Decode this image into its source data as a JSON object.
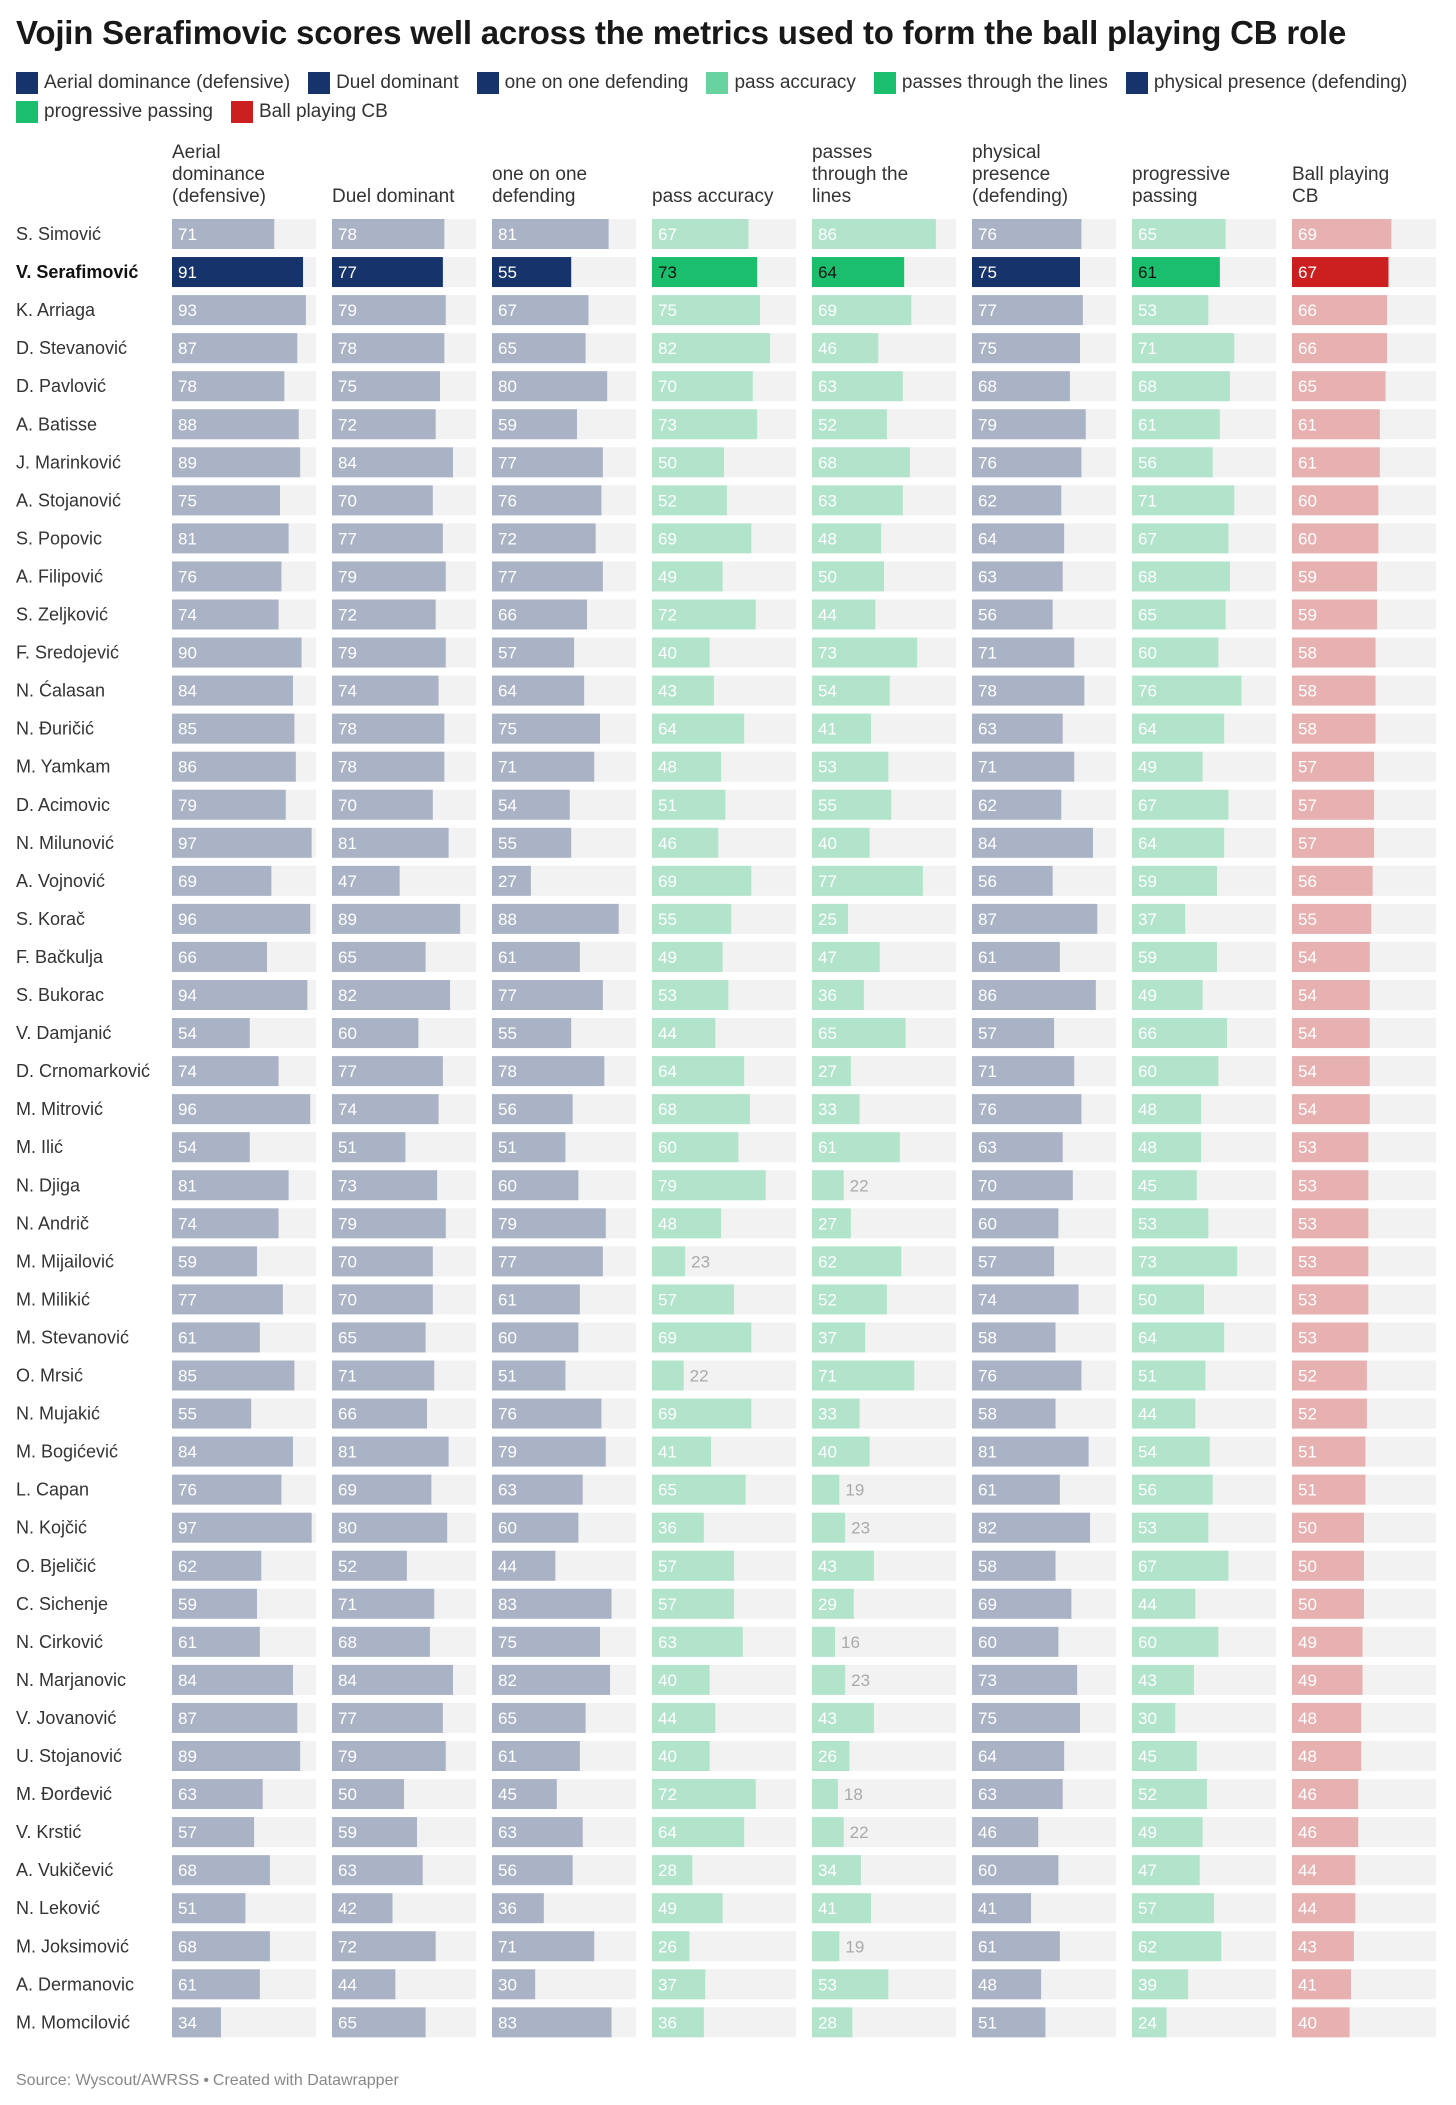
{
  "title": "Vojin Serafimovic scores well across the metrics used to form the ball playing CB role",
  "legend": [
    {
      "label": "Aerial dominance (defensive)",
      "color": "#17336b"
    },
    {
      "label": "Duel dominant",
      "color": "#17336b"
    },
    {
      "label": "one on one defending",
      "color": "#17336b"
    },
    {
      "label": "pass accuracy",
      "color": "#69d3a0"
    },
    {
      "label": "passes through the lines",
      "color": "#1bbe6c"
    },
    {
      "label": "physical presence (defending)",
      "color": "#17336b"
    },
    {
      "label": "progressive passing",
      "color": "#1bbe6c"
    },
    {
      "label": "Ball playing CB",
      "color": "#cc2020"
    }
  ],
  "footer": {
    "source": "Source: Wyscout/AWRSS",
    "separator": "•",
    "credit": "Created with Datawrapper"
  },
  "colors": {
    "defensive_highlight": "#17336b",
    "defensive_muted": "#aab3c6",
    "passing_highlight": "#1bbe6c",
    "passing_muted": "#b2e4cc",
    "cb_highlight": "#cc2020",
    "cb_muted": "#e8b1b1",
    "bar_background": "#f2f2f2"
  },
  "chart_data": {
    "type": "table",
    "scale_max": 100,
    "highlight_player": "V. Serafimović",
    "columns": [
      {
        "label": "Aerial dominance (defensive)",
        "group": "defensive"
      },
      {
        "label": "Duel dominant",
        "group": "defensive"
      },
      {
        "label": "one on one defending",
        "group": "defensive"
      },
      {
        "label": "pass accuracy",
        "group": "passing"
      },
      {
        "label": "passes through the lines",
        "group": "passing"
      },
      {
        "label": "physical presence (defending)",
        "group": "defensive"
      },
      {
        "label": "progressive passing",
        "group": "passing"
      },
      {
        "label": "Ball playing CB",
        "group": "cb"
      }
    ],
    "rows": [
      {
        "name": "S. Simović",
        "values": [
          71,
          78,
          81,
          67,
          86,
          76,
          65,
          69
        ]
      },
      {
        "name": "V. Serafimović",
        "values": [
          91,
          77,
          55,
          73,
          64,
          75,
          61,
          67
        ]
      },
      {
        "name": "K. Arriaga",
        "values": [
          93,
          79,
          67,
          75,
          69,
          77,
          53,
          66
        ]
      },
      {
        "name": "D. Stevanović",
        "values": [
          87,
          78,
          65,
          82,
          46,
          75,
          71,
          66
        ]
      },
      {
        "name": "D. Pavlović",
        "values": [
          78,
          75,
          80,
          70,
          63,
          68,
          68,
          65
        ]
      },
      {
        "name": "A. Batisse",
        "values": [
          88,
          72,
          59,
          73,
          52,
          79,
          61,
          61
        ]
      },
      {
        "name": "J. Marinković",
        "values": [
          89,
          84,
          77,
          50,
          68,
          76,
          56,
          61
        ]
      },
      {
        "name": "A. Stojanović",
        "values": [
          75,
          70,
          76,
          52,
          63,
          62,
          71,
          60
        ]
      },
      {
        "name": "S. Popovic",
        "values": [
          81,
          77,
          72,
          69,
          48,
          64,
          67,
          60
        ]
      },
      {
        "name": "A. Filipović",
        "values": [
          76,
          79,
          77,
          49,
          50,
          63,
          68,
          59
        ]
      },
      {
        "name": "S. Zeljković",
        "values": [
          74,
          72,
          66,
          72,
          44,
          56,
          65,
          59
        ]
      },
      {
        "name": "F. Sredojević",
        "values": [
          90,
          79,
          57,
          40,
          73,
          71,
          60,
          58
        ]
      },
      {
        "name": "N. Ćalasan",
        "values": [
          84,
          74,
          64,
          43,
          54,
          78,
          76,
          58
        ]
      },
      {
        "name": "N. Đuričić",
        "values": [
          85,
          78,
          75,
          64,
          41,
          63,
          64,
          58
        ]
      },
      {
        "name": "M. Yamkam",
        "values": [
          86,
          78,
          71,
          48,
          53,
          71,
          49,
          57
        ]
      },
      {
        "name": "D. Acimovic",
        "values": [
          79,
          70,
          54,
          51,
          55,
          62,
          67,
          57
        ]
      },
      {
        "name": "N. Milunović",
        "values": [
          97,
          81,
          55,
          46,
          40,
          84,
          64,
          57
        ]
      },
      {
        "name": "A. Vojnović",
        "values": [
          69,
          47,
          27,
          69,
          77,
          56,
          59,
          56
        ]
      },
      {
        "name": "S. Korač",
        "values": [
          96,
          89,
          88,
          55,
          25,
          87,
          37,
          55
        ]
      },
      {
        "name": "F. Bačkulja",
        "values": [
          66,
          65,
          61,
          49,
          47,
          61,
          59,
          54
        ]
      },
      {
        "name": "S. Bukorac",
        "values": [
          94,
          82,
          77,
          53,
          36,
          86,
          49,
          54
        ]
      },
      {
        "name": "V. Damjanić",
        "values": [
          54,
          60,
          55,
          44,
          65,
          57,
          66,
          54
        ]
      },
      {
        "name": "D. Crnomarković",
        "values": [
          74,
          77,
          78,
          64,
          27,
          71,
          60,
          54
        ]
      },
      {
        "name": "M. Mitrović",
        "values": [
          96,
          74,
          56,
          68,
          33,
          76,
          48,
          54
        ]
      },
      {
        "name": "M. Ilić",
        "values": [
          54,
          51,
          51,
          60,
          61,
          63,
          48,
          53
        ]
      },
      {
        "name": "N. Djiga",
        "values": [
          81,
          73,
          60,
          79,
          22,
          70,
          45,
          53
        ]
      },
      {
        "name": "N. Andrič",
        "values": [
          74,
          79,
          79,
          48,
          27,
          60,
          53,
          53
        ]
      },
      {
        "name": "M. Mijailović",
        "values": [
          59,
          70,
          77,
          23,
          62,
          57,
          73,
          53
        ]
      },
      {
        "name": "M. Milikić",
        "values": [
          77,
          70,
          61,
          57,
          52,
          74,
          50,
          53
        ]
      },
      {
        "name": "M. Stevanović",
        "values": [
          61,
          65,
          60,
          69,
          37,
          58,
          64,
          53
        ]
      },
      {
        "name": "O. Mrsić",
        "values": [
          85,
          71,
          51,
          22,
          71,
          76,
          51,
          52
        ]
      },
      {
        "name": "N. Mujakić",
        "values": [
          55,
          66,
          76,
          69,
          33,
          58,
          44,
          52
        ]
      },
      {
        "name": "M. Bogićević",
        "values": [
          84,
          81,
          79,
          41,
          40,
          81,
          54,
          51
        ]
      },
      {
        "name": "L. Capan",
        "values": [
          76,
          69,
          63,
          65,
          19,
          61,
          56,
          51
        ]
      },
      {
        "name": "N. Kojčić",
        "values": [
          97,
          80,
          60,
          36,
          23,
          82,
          53,
          50
        ]
      },
      {
        "name": "O. Bjeličić",
        "values": [
          62,
          52,
          44,
          57,
          43,
          58,
          67,
          50
        ]
      },
      {
        "name": "C. Sichenje",
        "values": [
          59,
          71,
          83,
          57,
          29,
          69,
          44,
          50
        ]
      },
      {
        "name": "N. Cirković",
        "values": [
          61,
          68,
          75,
          63,
          16,
          60,
          60,
          49
        ]
      },
      {
        "name": "N. Marjanovic",
        "values": [
          84,
          84,
          82,
          40,
          23,
          73,
          43,
          49
        ]
      },
      {
        "name": "V. Jovanović",
        "values": [
          87,
          77,
          65,
          44,
          43,
          75,
          30,
          48
        ]
      },
      {
        "name": "U. Stojanović",
        "values": [
          89,
          79,
          61,
          40,
          26,
          64,
          45,
          48
        ]
      },
      {
        "name": "M. Đorđević",
        "values": [
          63,
          50,
          45,
          72,
          18,
          63,
          52,
          46
        ]
      },
      {
        "name": "V. Krstić",
        "values": [
          57,
          59,
          63,
          64,
          22,
          46,
          49,
          46
        ]
      },
      {
        "name": "A. Vukičević",
        "values": [
          68,
          63,
          56,
          28,
          34,
          60,
          47,
          44
        ]
      },
      {
        "name": "N. Leković",
        "values": [
          51,
          42,
          36,
          49,
          41,
          41,
          57,
          44
        ]
      },
      {
        "name": "M. Joksimović",
        "values": [
          68,
          72,
          71,
          26,
          19,
          61,
          62,
          43
        ]
      },
      {
        "name": "A. Dermanovic",
        "values": [
          61,
          44,
          30,
          37,
          53,
          48,
          39,
          41
        ]
      },
      {
        "name": "M. Momcilović",
        "values": [
          34,
          65,
          83,
          36,
          28,
          51,
          24,
          40
        ]
      }
    ]
  }
}
